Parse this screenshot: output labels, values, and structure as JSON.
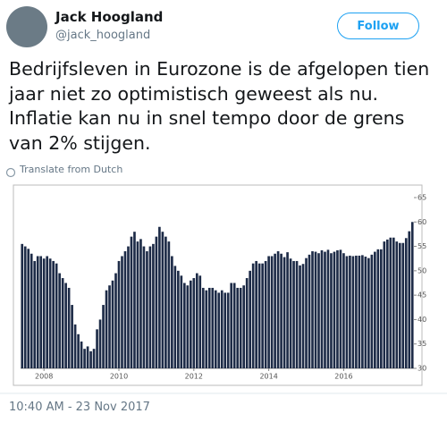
{
  "tweet": {
    "name": "Jack Hoogland",
    "handle": "@jack_hoogland",
    "follow": "Follow",
    "text": "Bedrijfsleven in Eurozone is de afgelopen tien jaar niet zo optimistisch geweest als nu. Inflatie kan nu in snel tempo door de grens van 2% stijgen.",
    "translate": "Translate from Dutch",
    "timestamp": "10:40 AM - 23 Nov 2017"
  },
  "chart_data": {
    "type": "bar",
    "color": "#1d2b47",
    "categories": [
      null,
      null,
      null,
      null,
      null,
      null,
      null,
      "2008",
      null,
      null,
      null,
      null,
      null,
      null,
      null,
      null,
      null,
      null,
      null,
      null,
      null,
      null,
      null,
      null,
      null,
      null,
      null,
      null,
      null,
      null,
      null,
      "2010",
      null,
      null,
      null,
      null,
      null,
      null,
      null,
      null,
      null,
      null,
      null,
      null,
      null,
      null,
      null,
      null,
      null,
      null,
      null,
      null,
      null,
      null,
      null,
      "2012",
      null,
      null,
      null,
      null,
      null,
      null,
      null,
      null,
      null,
      null,
      null,
      null,
      null,
      null,
      null,
      null,
      null,
      null,
      null,
      null,
      null,
      null,
      null,
      "2014",
      null,
      null,
      null,
      null,
      null,
      null,
      null,
      null,
      null,
      null,
      null,
      null,
      null,
      null,
      null,
      null,
      null,
      null,
      null,
      null,
      null,
      null,
      null,
      "2016",
      null,
      null,
      null,
      null,
      null,
      null,
      null,
      null,
      null,
      null,
      null,
      null,
      null,
      null,
      null,
      null,
      null,
      null,
      null,
      null,
      null,
      null
    ],
    "values": [
      55.5,
      55,
      54.5,
      53.5,
      52,
      53,
      53,
      52.5,
      53,
      52.5,
      52,
      51.5,
      49.5,
      48.5,
      47.5,
      46.5,
      43,
      39,
      37,
      35.5,
      34,
      34.5,
      33.5,
      34,
      38,
      40,
      43,
      46,
      47,
      48,
      49.5,
      52,
      53,
      54,
      55,
      57,
      58,
      56,
      56.5,
      55,
      54,
      55,
      55.5,
      57,
      59,
      58,
      57,
      56,
      53,
      51,
      50,
      49,
      47.5,
      47,
      48,
      48.5,
      49.5,
      49,
      46.5,
      46,
      46.5,
      46.5,
      46,
      45.5,
      46,
      45.5,
      45.5,
      47.5,
      47.5,
      46.5,
      46.5,
      47,
      48.5,
      50,
      51.5,
      52,
      51.5,
      51.5,
      52,
      53,
      53,
      53.5,
      54,
      53.5,
      52.8,
      53.8,
      52.5,
      52,
      52,
      51.1,
      51.4,
      52.6,
      53.3,
      54,
      53.9,
      53.6,
      54.2,
      53.9,
      54.3,
      53.6,
      53.9,
      54.2,
      54.3,
      53.6,
      53,
      53.1,
      53,
      53.1,
      53.1,
      53.2,
      52.9,
      52.6,
      53.3,
      53.9,
      54.4,
      54.4,
      56,
      56.4,
      56.8,
      56.8,
      56,
      55.7,
      55.7,
      56.7,
      58.1,
      60
    ],
    "ylim": [
      30,
      65
    ],
    "yticks": [
      30,
      35,
      40,
      45,
      50,
      55,
      60,
      65
    ]
  }
}
